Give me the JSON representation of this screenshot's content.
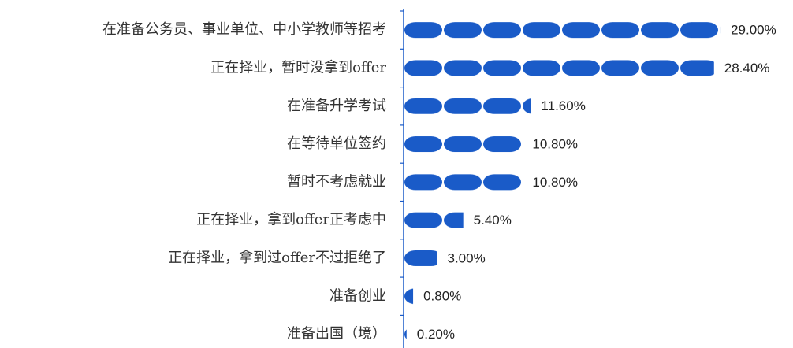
{
  "chart_data": {
    "type": "bar",
    "orientation": "horizontal",
    "categories": [
      "在准备公务员、事业单位、中小学教师等招考",
      "正在择业，暂时没拿到offer",
      "在准备升学考试",
      "在等待单位签约",
      "暂时不考虑就业",
      "正在择业，拿到offer正考虑中",
      "正在择业，拿到过offer不过拒绝了",
      "准备创业",
      "准备出国（境）"
    ],
    "values": [
      29,
      28.4,
      11.6,
      10.8,
      10.8,
      5.4,
      3,
      0.8,
      0.2
    ],
    "value_labels": [
      "29.00%",
      "28.40%",
      "11.60%",
      "10.80%",
      "10.80%",
      "5.40%",
      "3.00%",
      "0.80%",
      "0.20%"
    ],
    "color": "#1a5bc8"
  }
}
